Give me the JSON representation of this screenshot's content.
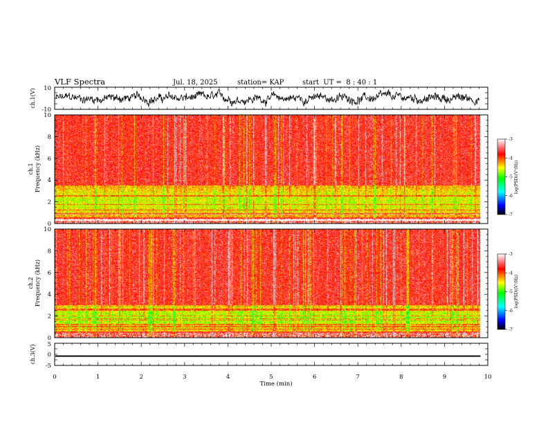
{
  "header": {
    "title": "VLF Spectra",
    "date": "Jul. 18, 2025",
    "station": "station= KAP",
    "start_ut": "start  UT =  8 : 40 : 1"
  },
  "chart_data": [
    {
      "type": "line",
      "name": "ch1-waveform",
      "ylabel": "ch.1(V)",
      "ylim": [
        -10,
        10
      ],
      "yticks": [
        "10",
        "-10"
      ],
      "mean": 0,
      "amplitude": 4
    },
    {
      "type": "heatmap",
      "name": "ch1-spectrogram",
      "ylabel": "ch.1\nFrequency (kHz)",
      "ylabel_line1": "ch.1",
      "ylabel_line2": "Frequency (kHz)",
      "ylim": [
        0,
        10
      ],
      "yticks": [
        "0",
        "2",
        "4",
        "6",
        "8",
        "10"
      ],
      "dominant_level": -3.7,
      "low_band_kHz": [
        0.5,
        3.5
      ],
      "low_band_level": -4.6
    },
    {
      "type": "heatmap",
      "name": "ch2-spectrogram",
      "ylabel": "ch.2\nFrequency (kHz)",
      "ylabel_line1": "ch.2",
      "ylabel_line2": "Frequency (kHz)",
      "ylim": [
        0,
        10
      ],
      "yticks": [
        "0",
        "2",
        "4",
        "6",
        "8",
        "10"
      ],
      "dominant_level": -3.7,
      "low_band_kHz": [
        0.5,
        3.0
      ],
      "low_band_level": -4.7
    },
    {
      "type": "line",
      "name": "ch3-waveform",
      "ylabel": "ch.3(V)",
      "ylim": [
        -5,
        5
      ],
      "yticks": [
        "5",
        "0",
        "-5"
      ],
      "mean": -0.8,
      "amplitude": 0.3
    }
  ],
  "xaxis": {
    "label": "Time (min)",
    "range": [
      0,
      10
    ],
    "ticks": [
      "0",
      "1",
      "2",
      "3",
      "4",
      "5",
      "6",
      "7",
      "8",
      "9",
      "10"
    ],
    "data_end": 9.83
  },
  "colorbar": {
    "label": "log(PSD)(V²/Hz)",
    "range": [
      -7,
      -3
    ],
    "ticks": [
      "-3",
      "-4",
      "-5",
      "-6",
      "-7"
    ],
    "colors": [
      "#000000",
      "#0000ff",
      "#00ffff",
      "#00ff00",
      "#ffff00",
      "#ff0000",
      "#ffffff"
    ]
  }
}
